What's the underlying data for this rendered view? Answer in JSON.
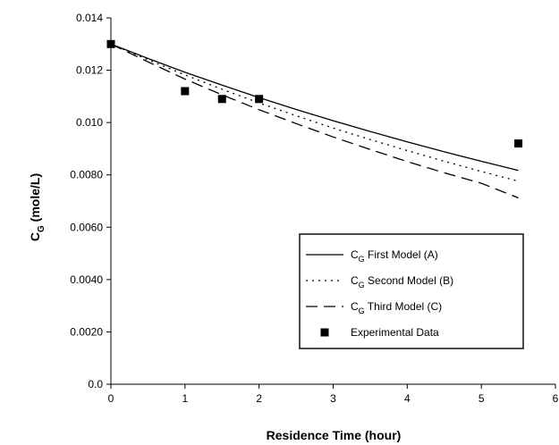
{
  "chart_data": {
    "type": "line",
    "title": "",
    "xlabel": "Residence Time (hour)",
    "ylabel": {
      "main": "C",
      "sub": "G",
      "rest": " (mole/L)"
    },
    "xlim": [
      0,
      6
    ],
    "ylim": [
      0,
      0.014
    ],
    "x_ticks": [
      {
        "value": 0,
        "label": "0"
      },
      {
        "value": 1,
        "label": "1"
      },
      {
        "value": 2,
        "label": "2"
      },
      {
        "value": 3,
        "label": "3"
      },
      {
        "value": 4,
        "label": "4"
      },
      {
        "value": 5,
        "label": "5"
      },
      {
        "value": 6,
        "label": "6"
      }
    ],
    "y_ticks": [
      {
        "value": 0,
        "label": "0.0"
      },
      {
        "value": 0.002,
        "label": "0.0020"
      },
      {
        "value": 0.004,
        "label": "0.0040"
      },
      {
        "value": 0.006,
        "label": "0.0060"
      },
      {
        "value": 0.008,
        "label": "0.0080"
      },
      {
        "value": 0.01,
        "label": "0.010"
      },
      {
        "value": 0.012,
        "label": "0.012"
      },
      {
        "value": 0.014,
        "label": "0.014"
      }
    ],
    "grid": false,
    "legend_position": "bottom-right",
    "series": [
      {
        "legend": {
          "main": "C",
          "sub": "G",
          "rest": " First Model (A)"
        },
        "style": "solid",
        "x": [
          0,
          0.5,
          1,
          1.5,
          2,
          2.5,
          3,
          3.5,
          4,
          4.5,
          5,
          5.5
        ],
        "y": [
          0.013,
          0.01245,
          0.01192,
          0.01143,
          0.01095,
          0.0105,
          0.01007,
          0.00966,
          0.00926,
          0.00888,
          0.00852,
          0.00817
        ]
      },
      {
        "legend": {
          "main": "C",
          "sub": "G",
          "rest": " Second Model (B)"
        },
        "style": "dotted",
        "x": [
          0,
          0.5,
          1,
          1.5,
          2,
          2.5,
          3,
          3.5,
          4,
          4.5,
          5,
          5.5
        ],
        "y": [
          0.013,
          0.0124,
          0.01182,
          0.01127,
          0.01075,
          0.01026,
          0.00979,
          0.00935,
          0.00893,
          0.00852,
          0.00813,
          0.00776
        ]
      },
      {
        "legend": {
          "main": "C",
          "sub": "G",
          "rest": " Third Model (C)"
        },
        "style": "dashed",
        "x": [
          0,
          0.5,
          1,
          1.5,
          2,
          2.5,
          3,
          3.5,
          4,
          4.5,
          5,
          5.5
        ],
        "y": [
          0.013,
          0.01232,
          0.01166,
          0.01106,
          0.01049,
          0.00996,
          0.00945,
          0.00897,
          0.00851,
          0.00808,
          0.00768,
          0.00712
        ]
      },
      {
        "legend": {
          "main": "",
          "sub": "",
          "rest": "Experimental Data"
        },
        "style": "markers",
        "x": [
          0,
          1,
          1.5,
          2,
          5.5
        ],
        "y": [
          0.013,
          0.0112,
          0.0109,
          0.0109,
          0.0092
        ]
      }
    ]
  }
}
